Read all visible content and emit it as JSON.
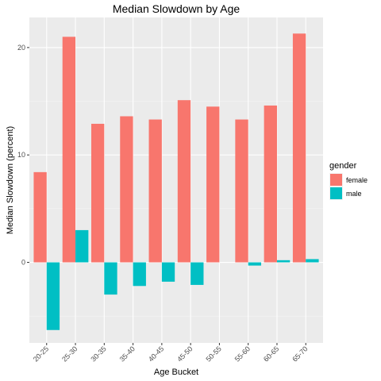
{
  "chart_data": {
    "type": "bar",
    "title": "Median Slowdown by Age",
    "xlabel": "Age Bucket",
    "ylabel": "Median Slowdown (percent)",
    "categories": [
      "20-25",
      "25-30",
      "30-35",
      "35-40",
      "40-45",
      "45-50",
      "50-55",
      "55-60",
      "60-65",
      "65-70"
    ],
    "series": [
      {
        "name": "female",
        "color": "#F8766D",
        "values": [
          8.4,
          21.0,
          12.9,
          13.6,
          13.3,
          15.1,
          14.5,
          13.3,
          14.6,
          21.3
        ]
      },
      {
        "name": "male",
        "color": "#00BFC4",
        "values": [
          -6.3,
          3.0,
          -3.0,
          -2.2,
          -1.8,
          -2.1,
          null,
          -0.3,
          0.2,
          0.3
        ]
      }
    ],
    "ylim": [
      -7.5,
      22.8
    ],
    "yticks": [
      0,
      10,
      20
    ],
    "grid": true,
    "legend": {
      "title": "gender",
      "position": "right"
    }
  }
}
